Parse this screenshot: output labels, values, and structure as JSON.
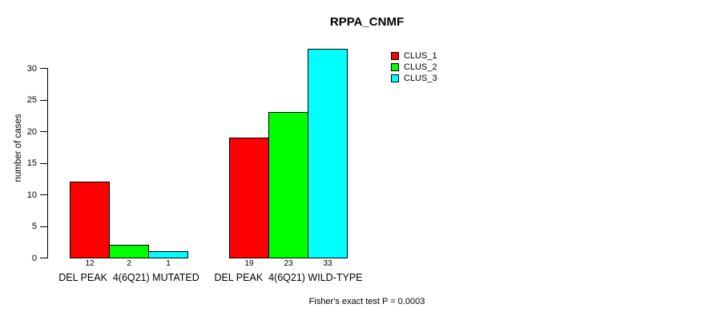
{
  "chart_data": {
    "type": "bar",
    "title": "RPPA_CNMF",
    "ylabel": "number of cases",
    "xlabel": "",
    "categories": [
      "DEL PEAK  4(6Q21) MUTATED",
      "DEL PEAK  4(6Q21) WILD-TYPE"
    ],
    "series": [
      {
        "name": "CLUS_1",
        "color": "#FF0000",
        "values": [
          12,
          19
        ]
      },
      {
        "name": "CLUS_2",
        "color": "#00FF00",
        "values": [
          2,
          23
        ]
      },
      {
        "name": "CLUS_3",
        "color": "#00FFFF",
        "values": [
          1,
          33
        ]
      }
    ],
    "yticks": [
      0,
      5,
      10,
      15,
      20,
      25,
      30
    ],
    "ylim": [
      0,
      33
    ],
    "grid": false,
    "values_shown_below_bars": true,
    "legend": {
      "position": "top-right-inside",
      "entries": [
        "CLUS_1",
        "CLUS_2",
        "CLUS_3"
      ]
    },
    "annotation": "Fisher's exact test P = 0.0003",
    "colors": {
      "background": "#FFFFFF",
      "axis": "#000000",
      "text": "#000000"
    }
  }
}
